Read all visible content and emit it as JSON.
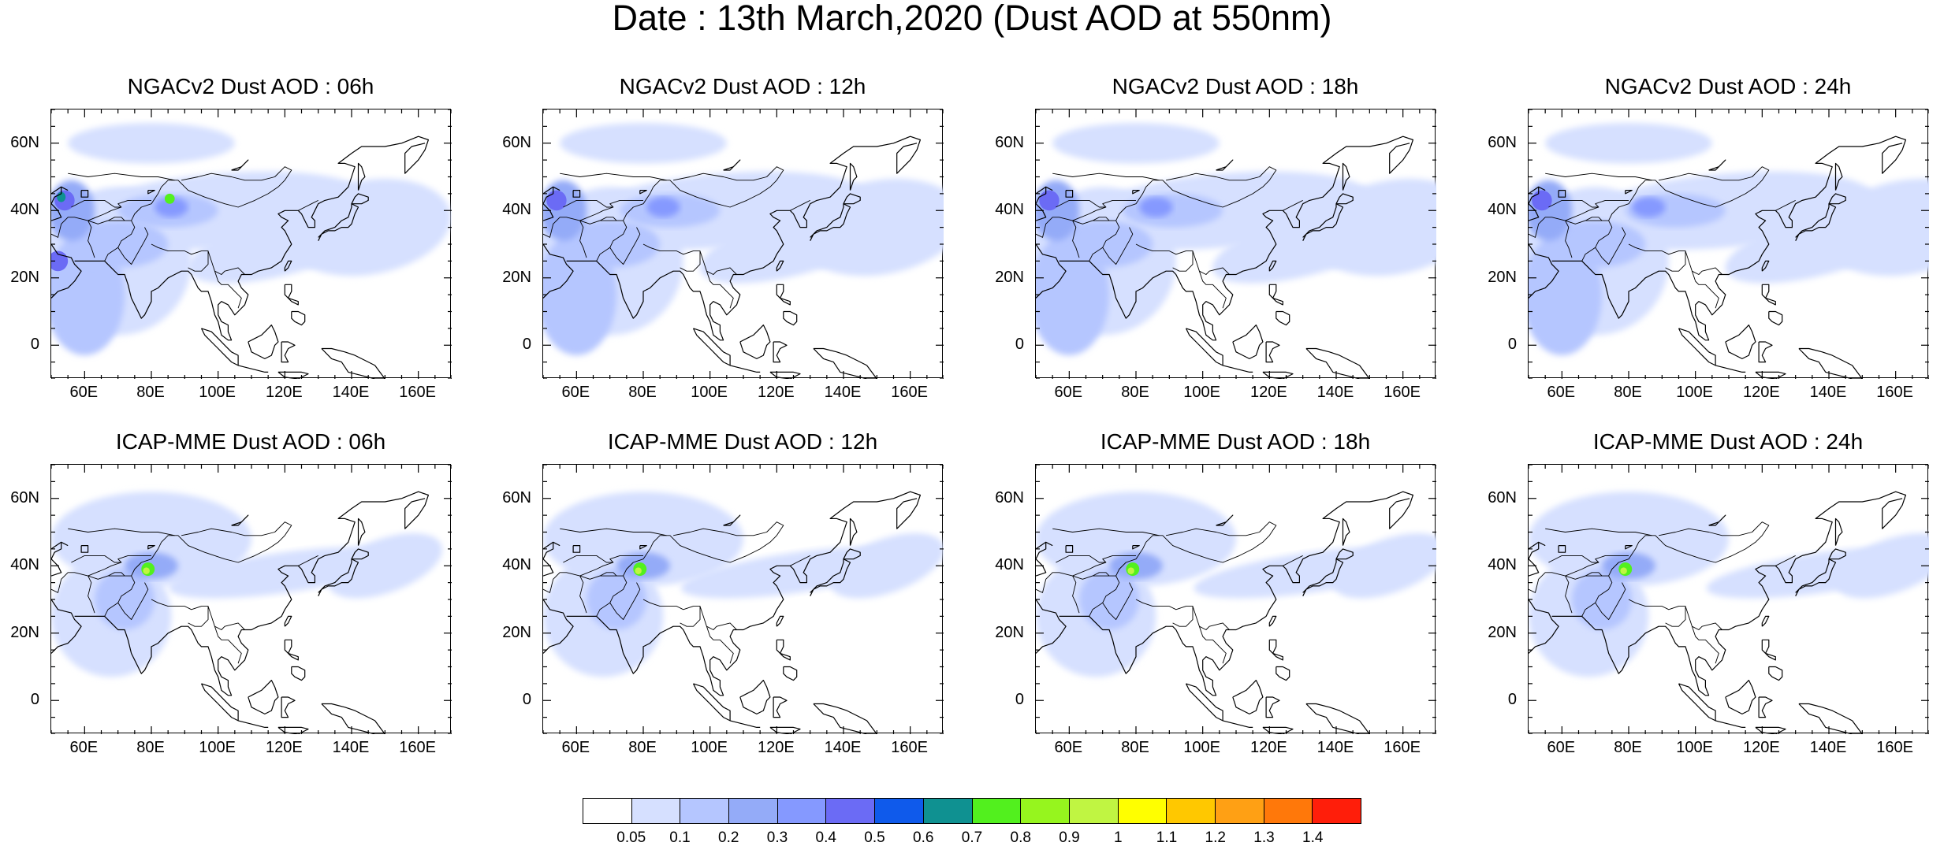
{
  "title": "Date : 13th March,2020 (Dust AOD at 550nm)",
  "panels": [
    {
      "title": "NGACv2 Dust AOD : 06h",
      "model": "NGACv2",
      "lead": "06h"
    },
    {
      "title": "NGACv2 Dust AOD : 12h",
      "model": "NGACv2",
      "lead": "12h"
    },
    {
      "title": "NGACv2 Dust AOD : 18h",
      "model": "NGACv2",
      "lead": "18h"
    },
    {
      "title": "NGACv2 Dust AOD : 24h",
      "model": "NGACv2",
      "lead": "24h"
    },
    {
      "title": "ICAP-MME Dust AOD : 06h",
      "model": "ICAP-MME",
      "lead": "06h"
    },
    {
      "title": "ICAP-MME Dust AOD : 12h",
      "model": "ICAP-MME",
      "lead": "12h"
    },
    {
      "title": "ICAP-MME Dust AOD : 18h",
      "model": "ICAP-MME",
      "lead": "18h"
    },
    {
      "title": "ICAP-MME Dust AOD : 24h",
      "model": "ICAP-MME",
      "lead": "24h"
    }
  ],
  "map_extent": {
    "lon_min": 50,
    "lon_max": 170,
    "lat_min": -10,
    "lat_max": 70
  },
  "lon_ticks": [
    "60E",
    "80E",
    "100E",
    "120E",
    "140E",
    "160E"
  ],
  "lat_ticks": [
    "60N",
    "40N",
    "20N",
    "0"
  ],
  "colorbar": {
    "labels": [
      "0.05",
      "0.1",
      "0.2",
      "0.3",
      "0.4",
      "0.5",
      "0.6",
      "0.7",
      "0.8",
      "0.9",
      "1",
      "1.1",
      "1.2",
      "1.3",
      "1.4"
    ],
    "colors": [
      "#ffffff",
      "#d6e0ff",
      "#b5c6ff",
      "#94abf8",
      "#8599ff",
      "#6b6bf5",
      "#0f5aeb",
      "#0f9191",
      "#52f01e",
      "#96f51e",
      "#c0f542",
      "#ffff00",
      "#ffc800",
      "#ffa014",
      "#ff780a",
      "#ff1e0a"
    ]
  }
}
